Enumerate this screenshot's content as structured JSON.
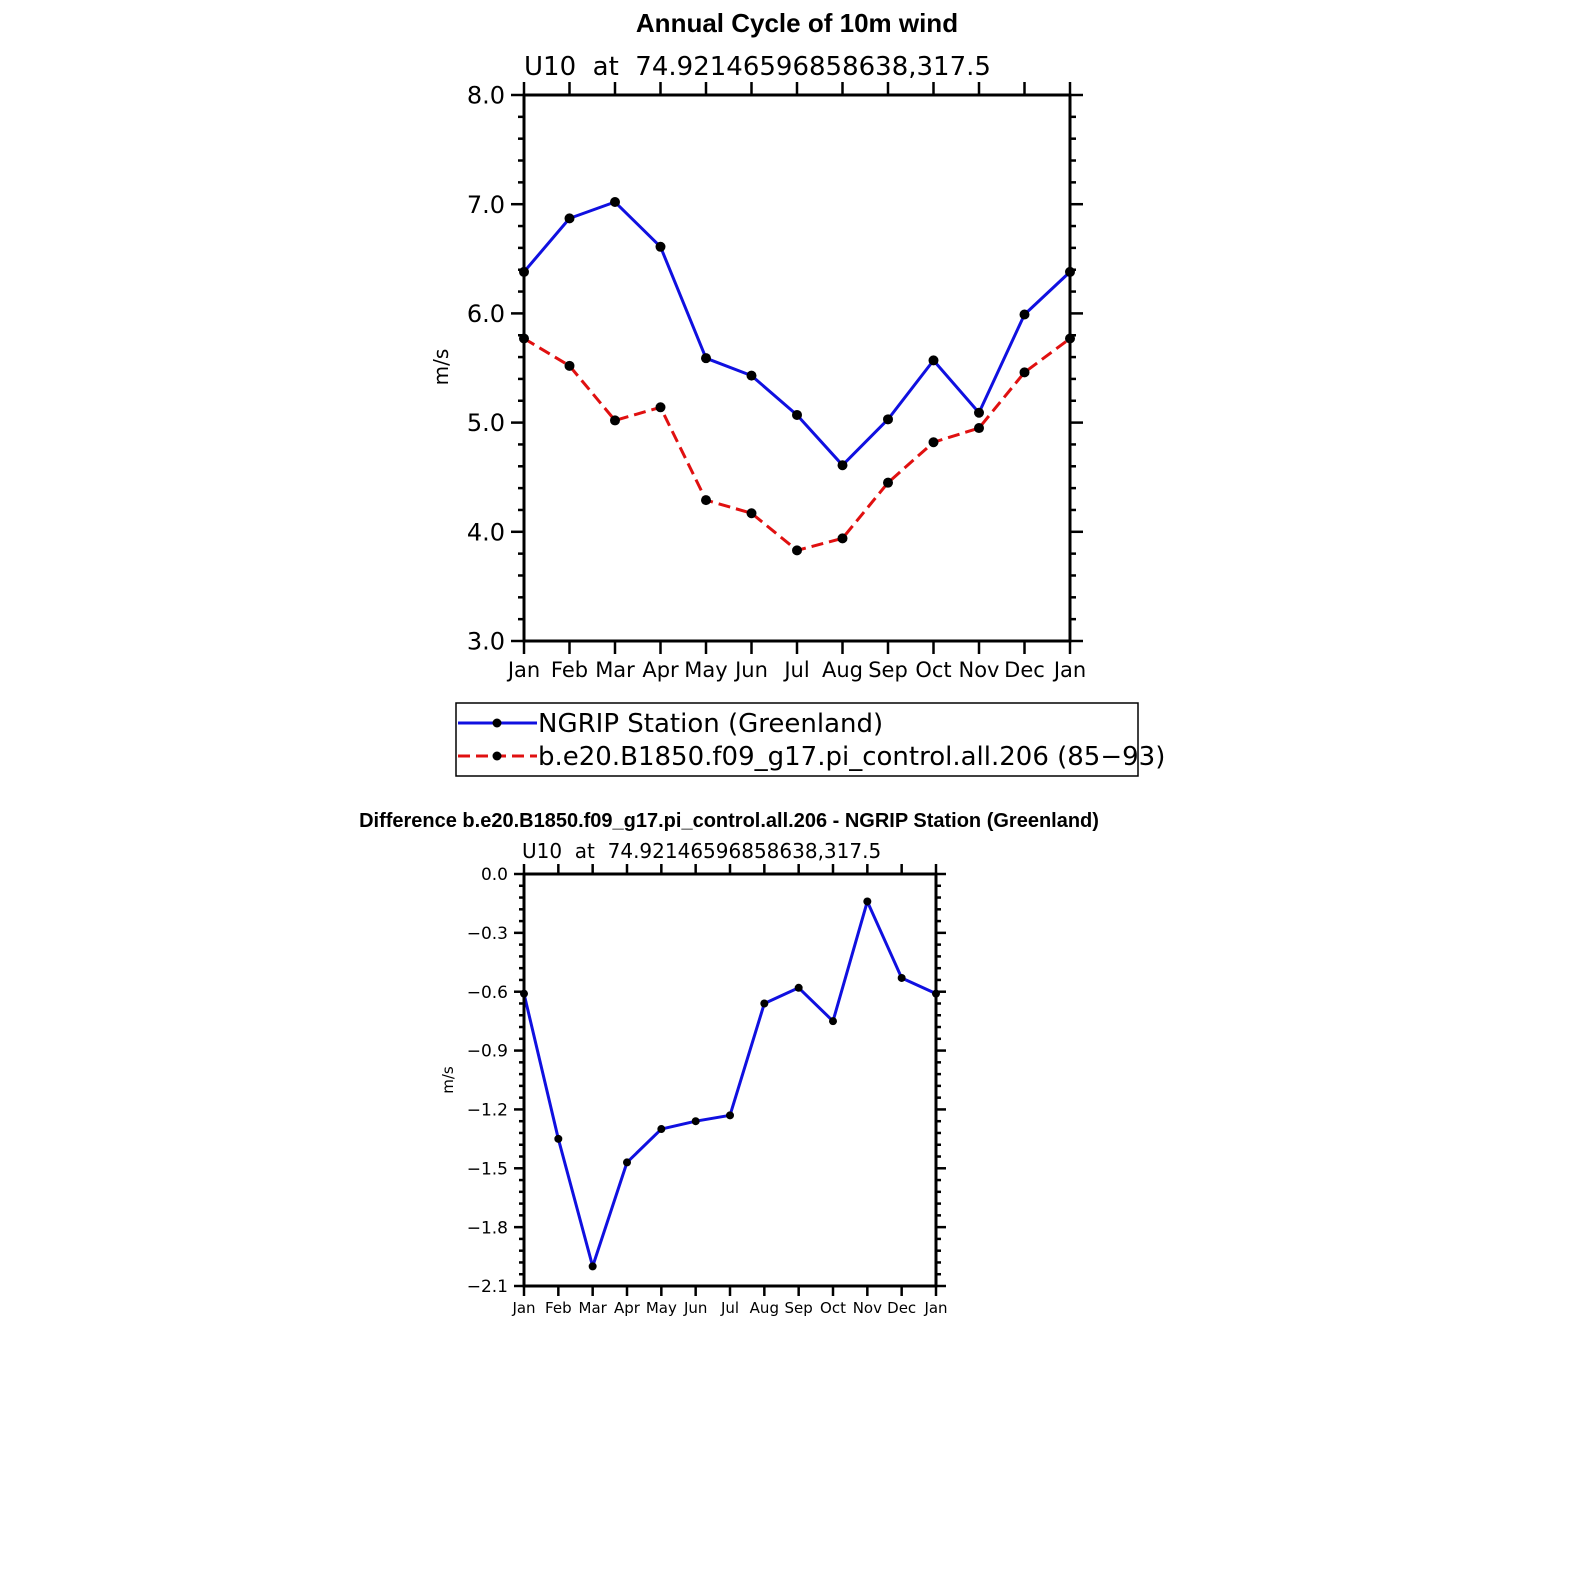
{
  "chart_data": [
    {
      "type": "line",
      "title": "Annual Cycle of 10m wind",
      "subtitle": "U10  at  74.92146596858638,317.5",
      "xlabel": "",
      "ylabel": "m/s",
      "categories": [
        "Jan",
        "Feb",
        "Mar",
        "Apr",
        "May",
        "Jun",
        "Jul",
        "Aug",
        "Sep",
        "Oct",
        "Nov",
        "Dec",
        "Jan"
      ],
      "ylim": [
        3.0,
        8.0
      ],
      "yticks": [
        "3.0",
        "4.0",
        "5.0",
        "6.0",
        "7.0",
        "8.0"
      ],
      "grid": false,
      "legend_placement": "bottom",
      "series": [
        {
          "name": "NGRIP Station (Greenland)",
          "color": "#1010e0",
          "dash": "solid",
          "values": [
            6.38,
            6.87,
            7.02,
            6.61,
            5.59,
            5.43,
            5.07,
            4.61,
            5.03,
            5.57,
            5.09,
            5.99,
            6.38
          ]
        },
        {
          "name": "b.e20.B1850.f09_g17.pi_control.all.206 (85−93)",
          "color": "#e01010",
          "dash": "dashed",
          "values": [
            5.77,
            5.52,
            5.02,
            5.14,
            4.29,
            4.17,
            3.83,
            3.94,
            4.45,
            4.82,
            4.95,
            5.46,
            5.77
          ]
        }
      ]
    },
    {
      "type": "line",
      "title": "Difference b.e20.B1850.f09_g17.pi_control.all.206 - NGRIP Station (Greenland)",
      "subtitle": "U10  at  74.92146596858638,317.5",
      "xlabel": "",
      "ylabel": "m/s",
      "categories": [
        "Jan",
        "Feb",
        "Mar",
        "Apr",
        "May",
        "Jun",
        "Jul",
        "Aug",
        "Sep",
        "Oct",
        "Nov",
        "Dec",
        "Jan"
      ],
      "ylim": [
        -2.1,
        0.0
      ],
      "yticks": [
        "−2.1",
        "−1.8",
        "−1.5",
        "−1.2",
        "−0.9",
        "−0.6",
        "−0.3",
        "0.0"
      ],
      "grid": false,
      "series": [
        {
          "color": "#1010e0",
          "dash": "solid",
          "values": [
            -0.61,
            -1.35,
            -2.0,
            -1.47,
            -1.3,
            -1.26,
            -1.23,
            -0.66,
            -0.58,
            -0.75,
            -0.14,
            -0.53,
            -0.61
          ]
        }
      ]
    }
  ]
}
